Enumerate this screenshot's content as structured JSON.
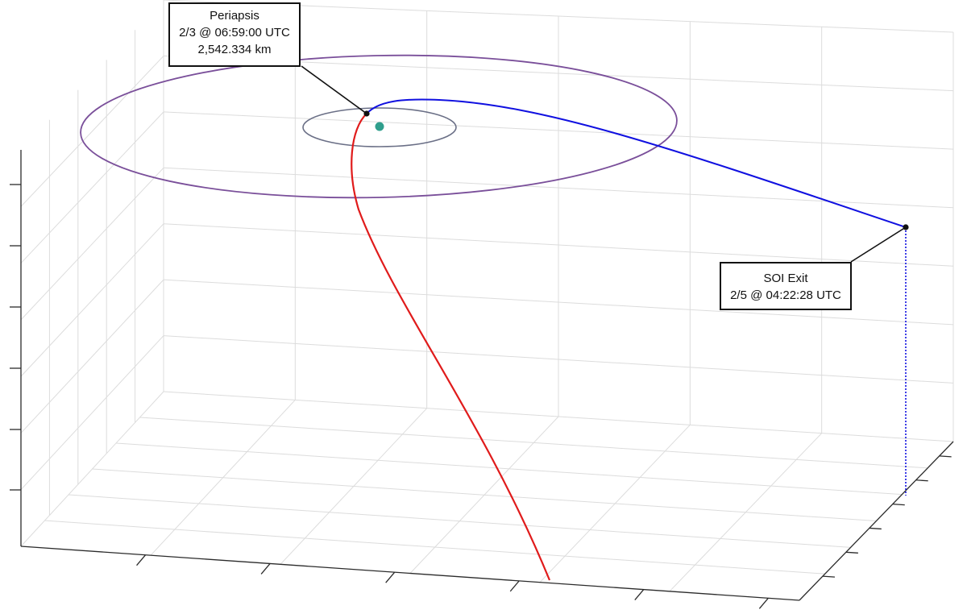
{
  "chart_data": {
    "type": "3d-trajectory",
    "grid": true,
    "colors": {
      "approach_leg": "#e01b1b",
      "departure_leg": "#1010e0",
      "outer_orbit": "#7a4f9a",
      "inner_orbit": "#6a6f86",
      "central_body": "#2f9e8c",
      "exit_drop_line": "#1010e0"
    },
    "annotations": {
      "periapsis": {
        "title": "Periapsis",
        "time": "2/3 @ 06:59:00 UTC",
        "altitude": "2,542.334 km"
      },
      "soi_exit": {
        "title": "SOI Exit",
        "time": "2/5 @ 04:22:28 UTC"
      }
    }
  }
}
